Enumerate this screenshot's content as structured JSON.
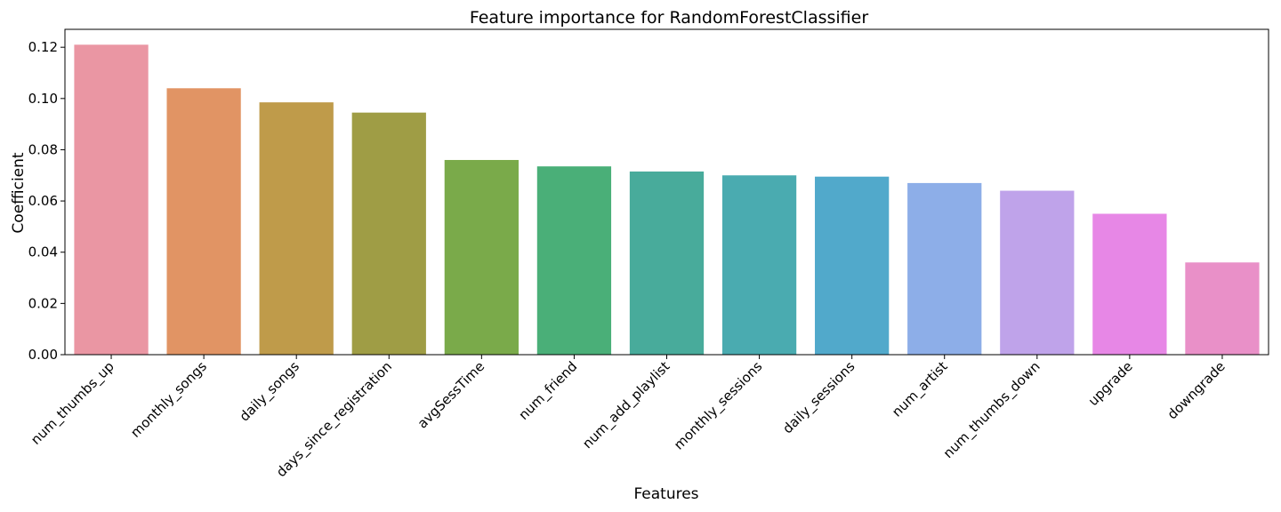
{
  "chart_data": {
    "type": "bar",
    "title": "Feature importance for RandomForestClassifier",
    "xlabel": "Features",
    "ylabel": "Coefficient",
    "ylim": [
      0,
      0.127
    ],
    "yticks": [
      0.0,
      0.02,
      0.04,
      0.06,
      0.08,
      0.1,
      0.12
    ],
    "ytick_labels": [
      "0.00",
      "0.02",
      "0.04",
      "0.06",
      "0.08",
      "0.10",
      "0.12"
    ],
    "grid": false,
    "categories": [
      "num_thumbs_up",
      "monthly_songs",
      "daily_songs",
      "days_since_registration",
      "avgSessTime",
      "num_friend",
      "num_add_playlist",
      "monthly_sessions",
      "daily_sessions",
      "num_artist",
      "num_thumbs_down",
      "upgrade",
      "downgrade"
    ],
    "values": [
      0.121,
      0.104,
      0.0985,
      0.0945,
      0.076,
      0.0735,
      0.0715,
      0.07,
      0.0695,
      0.067,
      0.064,
      0.055,
      0.036
    ],
    "colors": [
      "#ea96a3",
      "#e19464",
      "#bf9b4a",
      "#9f9d45",
      "#7aaa4a",
      "#4aaf78",
      "#48ab9b",
      "#4aabb0",
      "#51a9cb",
      "#8daee8",
      "#bfa3ea",
      "#e787e6",
      "#e990c8"
    ]
  }
}
